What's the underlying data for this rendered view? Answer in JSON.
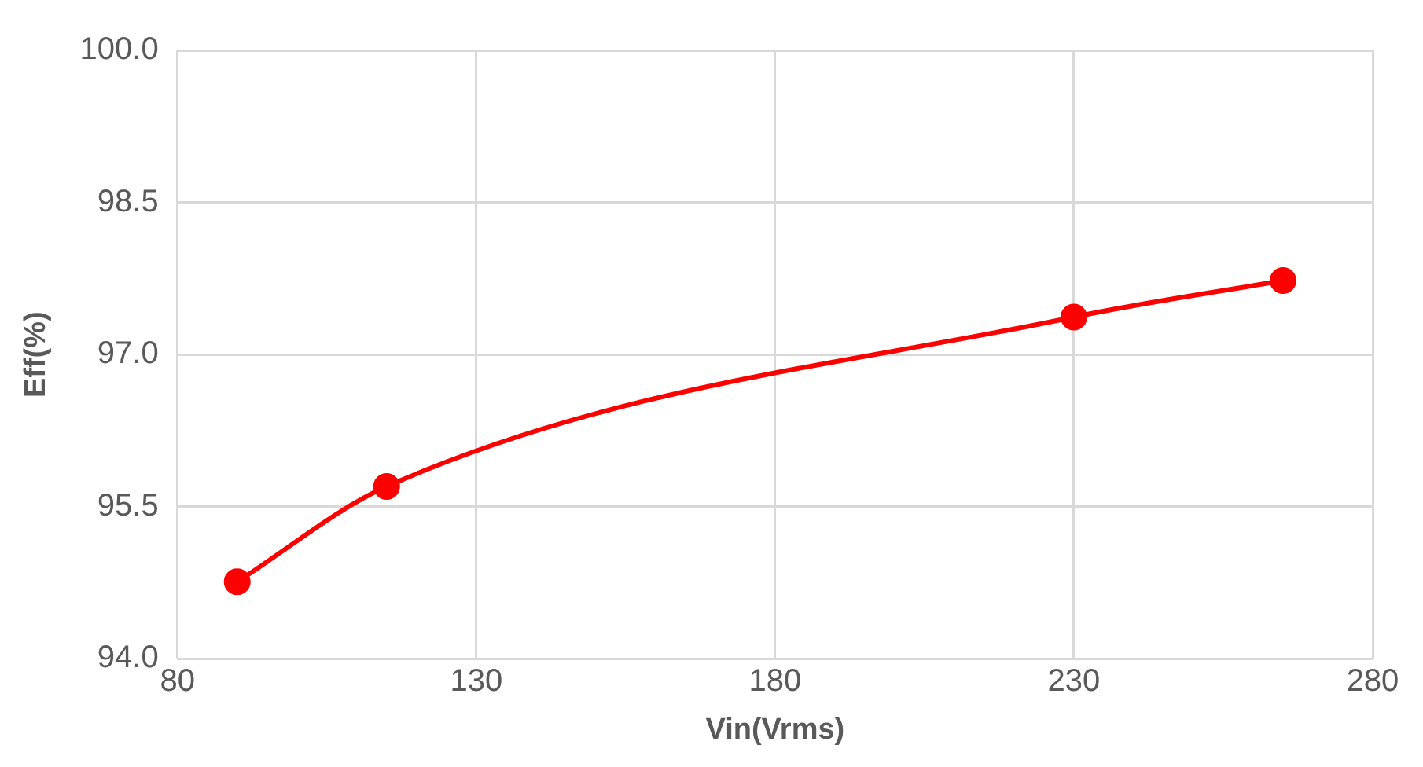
{
  "chart_data": {
    "type": "line",
    "xlabel": "Vin(Vrms)",
    "ylabel": "Eff(%)",
    "x": [
      90,
      115,
      230,
      265
    ],
    "series": [
      {
        "color": "#ff0000",
        "values": [
          94.76,
          95.7,
          97.37,
          97.73
        ]
      }
    ],
    "xlim": [
      80,
      280
    ],
    "xticks": [
      80,
      130,
      180,
      230,
      280
    ],
    "ylim": [
      94,
      100
    ],
    "yticks": [
      {
        "value": 94,
        "label": "94.0"
      },
      95.5,
      {
        "value": 97,
        "label": "97.0"
      },
      98.5,
      {
        "value": 100,
        "label": "100.0"
      }
    ],
    "grid": true,
    "marker": "circle",
    "line_style": "solid",
    "legend": false
  }
}
